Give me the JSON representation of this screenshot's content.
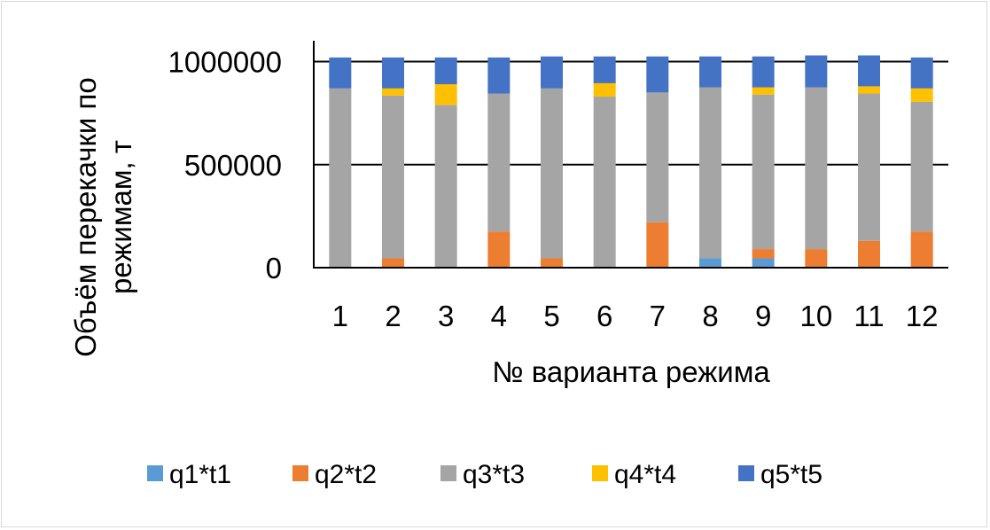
{
  "chart_data": {
    "type": "bar",
    "stacked": true,
    "categories": [
      "1",
      "2",
      "3",
      "4",
      "5",
      "6",
      "7",
      "8",
      "9",
      "10",
      "11",
      "12"
    ],
    "xlabel": "№ варианта режима",
    "ylabel": "Объём перекачки по режимам, т",
    "ylim": [
      0,
      1000000
    ],
    "yticks": [
      "0",
      "500000",
      "1000000"
    ],
    "grid": true,
    "legend_position": "bottom",
    "series": [
      {
        "name": "q1*t1",
        "color": "#5b9bd5",
        "values": [
          0,
          0,
          0,
          0,
          0,
          0,
          0,
          45000,
          45000,
          0,
          0,
          0
        ]
      },
      {
        "name": "q2*t2",
        "color": "#ed7d31",
        "values": [
          0,
          45000,
          0,
          175000,
          45000,
          0,
          220000,
          0,
          45000,
          90000,
          130000,
          175000
        ]
      },
      {
        "name": "q3*t3",
        "color": "#a5a5a5",
        "values": [
          870000,
          790000,
          790000,
          670000,
          825000,
          830000,
          630000,
          830000,
          750000,
          785000,
          715000,
          630000
        ]
      },
      {
        "name": "q4*t4",
        "color": "#ffc000",
        "values": [
          0,
          35000,
          100000,
          0,
          0,
          65000,
          0,
          0,
          35000,
          0,
          35000,
          65000
        ]
      },
      {
        "name": "q5*t5",
        "color": "#4472c4",
        "values": [
          150000,
          150000,
          130000,
          175000,
          155000,
          130000,
          175000,
          150000,
          150000,
          155000,
          150000,
          150000
        ]
      }
    ]
  }
}
